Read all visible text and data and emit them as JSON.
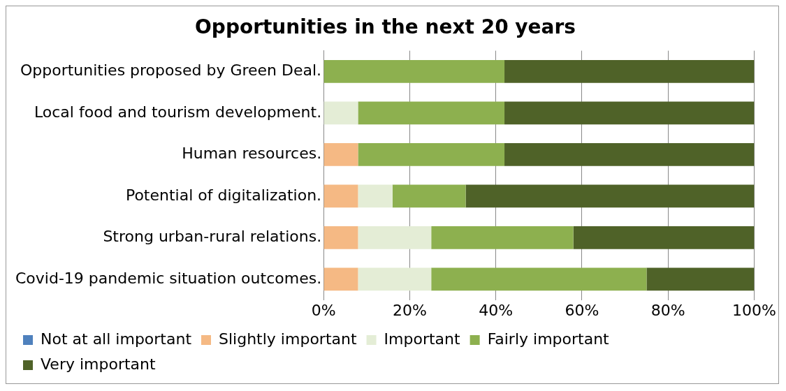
{
  "chart_data": {
    "type": "bar",
    "orientation": "horizontal",
    "stacked": true,
    "title": "Opportunities in the next 20 years",
    "categories": [
      "Opportunities proposed by Green Deal.",
      "Local food and tourism development.",
      "Human resources.",
      "Potential of digitalization.",
      "Strong urban-rural relations.",
      "Covid-19 pandemic situation outcomes."
    ],
    "series": [
      {
        "name": "Not at all important",
        "color": "#4f81bd",
        "values": [
          0,
          0,
          0,
          0,
          0,
          0
        ]
      },
      {
        "name": "Slightly important",
        "color": "#f5b984",
        "values": [
          0,
          0,
          8,
          8,
          8,
          8
        ]
      },
      {
        "name": "Important",
        "color": "#e4edd6",
        "values": [
          0,
          8,
          0,
          8,
          17,
          17
        ]
      },
      {
        "name": "Fairly important",
        "color": "#8db04f",
        "values": [
          42,
          34,
          34,
          17,
          33,
          50
        ]
      },
      {
        "name": "Very important",
        "color": "#4f6228",
        "values": [
          58,
          58,
          58,
          67,
          42,
          25
        ]
      }
    ],
    "xlim": [
      0,
      100
    ],
    "xticks": [
      {
        "value": 0,
        "label": "0%"
      },
      {
        "value": 20,
        "label": "20%"
      },
      {
        "value": 40,
        "label": "40%"
      },
      {
        "value": 60,
        "label": "60%"
      },
      {
        "value": 80,
        "label": "80%"
      },
      {
        "value": 100,
        "label": "100%"
      }
    ],
    "grid": "x",
    "legend": "bottom"
  }
}
